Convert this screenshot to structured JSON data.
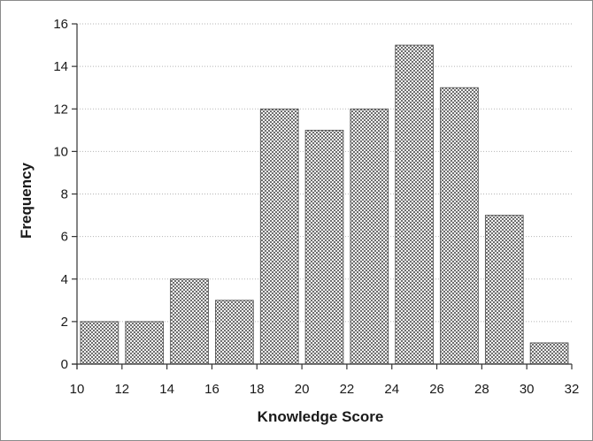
{
  "chart_data": {
    "type": "bar",
    "title": "",
    "xlabel": "Knowledge Score",
    "ylabel": "Frequency",
    "xlim": [
      10,
      32
    ],
    "ylim": [
      0,
      16
    ],
    "xticks": [
      10,
      12,
      14,
      16,
      18,
      20,
      22,
      24,
      26,
      28,
      30,
      32
    ],
    "yticks": [
      0,
      2,
      4,
      6,
      8,
      10,
      12,
      14,
      16
    ],
    "bins": [
      {
        "start": 10,
        "end": 12,
        "value": 2
      },
      {
        "start": 12,
        "end": 14,
        "value": 2
      },
      {
        "start": 14,
        "end": 16,
        "value": 4
      },
      {
        "start": 16,
        "end": 18,
        "value": 3
      },
      {
        "start": 18,
        "end": 20,
        "value": 12
      },
      {
        "start": 20,
        "end": 22,
        "value": 11
      },
      {
        "start": 22,
        "end": 24,
        "value": 12
      },
      {
        "start": 24,
        "end": 26,
        "value": 15
      },
      {
        "start": 26,
        "end": 28,
        "value": 13
      },
      {
        "start": 28,
        "end": 30,
        "value": 7
      },
      {
        "start": 30,
        "end": 32,
        "value": 1
      }
    ],
    "grid": "horizontal dotted",
    "bar_fill": "checkered gray",
    "colors": {
      "bar_dark": "#6e6e6e",
      "bar_light": "#f2f2f2",
      "bar_edge": "#4a4a4a",
      "grid": "#b5b5b5",
      "axis": "#333333"
    }
  }
}
